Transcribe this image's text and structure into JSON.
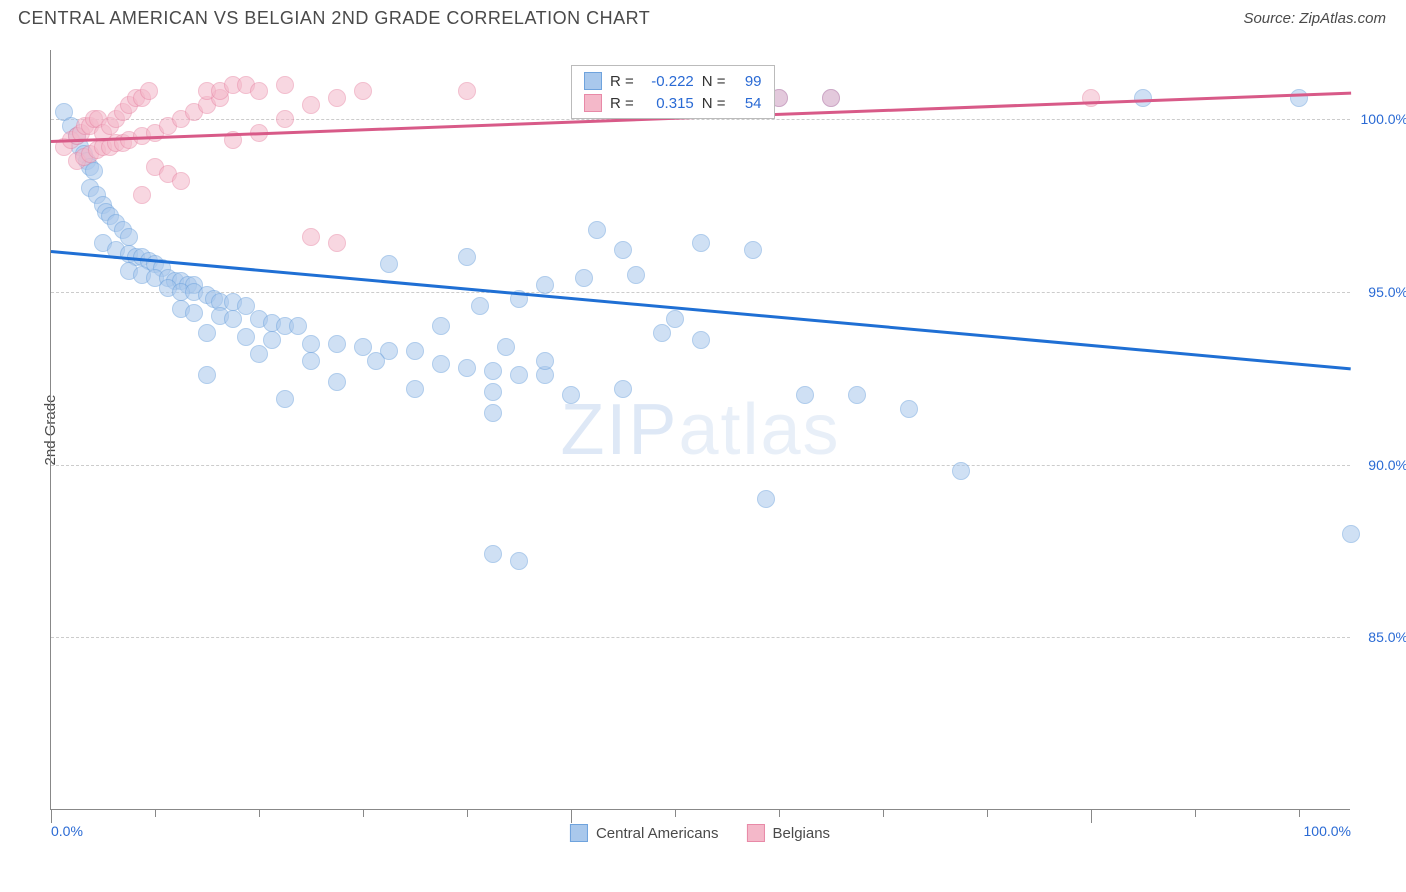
{
  "header": {
    "title": "CENTRAL AMERICAN VS BELGIAN 2ND GRADE CORRELATION CHART",
    "source": "Source: ZipAtlas.com"
  },
  "chart": {
    "type": "scatter",
    "ylabel": "2nd Grade",
    "watermark_a": "ZIP",
    "watermark_b": "atlas",
    "xlim": [
      0,
      100
    ],
    "ylim": [
      80,
      102
    ],
    "yticks": [
      {
        "v": 85,
        "label": "85.0%"
      },
      {
        "v": 90,
        "label": "90.0%"
      },
      {
        "v": 95,
        "label": "95.0%"
      },
      {
        "v": 100,
        "label": "100.0%"
      }
    ],
    "xticks_major": [
      0,
      40,
      80
    ],
    "xtick_labels": [
      {
        "v": 0,
        "label": "0.0%"
      },
      {
        "v": 100,
        "label": "100.0%"
      }
    ],
    "xticks_minor": [
      8,
      16,
      24,
      32,
      48,
      56,
      64,
      72,
      88,
      96
    ],
    "grid_color": "#cccccc",
    "background_color": "#ffffff",
    "marker_radius": 9,
    "marker_opacity": 0.55,
    "series": [
      {
        "name": "Central Americans",
        "color_fill": "#a9c8ec",
        "color_stroke": "#6fa3dd",
        "r": "-0.222",
        "n": "99",
        "trend": {
          "x1": 0,
          "y1": 96.2,
          "x2": 100,
          "y2": 92.8,
          "color": "#1f6fd4",
          "width": 2.5
        },
        "points": [
          [
            1,
            100.2
          ],
          [
            1.5,
            99.8
          ],
          [
            2,
            99.5
          ],
          [
            2.2,
            99.2
          ],
          [
            2.5,
            99.0
          ],
          [
            2.8,
            98.8
          ],
          [
            3,
            98.6
          ],
          [
            3.3,
            98.5
          ],
          [
            3,
            98.0
          ],
          [
            3.5,
            97.8
          ],
          [
            4,
            97.5
          ],
          [
            4.2,
            97.3
          ],
          [
            4.5,
            97.2
          ],
          [
            5,
            97.0
          ],
          [
            5.5,
            96.8
          ],
          [
            6,
            96.6
          ],
          [
            4,
            96.4
          ],
          [
            5,
            96.2
          ],
          [
            6,
            96.1
          ],
          [
            6.5,
            96.0
          ],
          [
            7,
            96.0
          ],
          [
            7.5,
            95.9
          ],
          [
            8,
            95.8
          ],
          [
            8.5,
            95.7
          ],
          [
            6,
            95.6
          ],
          [
            7,
            95.5
          ],
          [
            8,
            95.4
          ],
          [
            9,
            95.4
          ],
          [
            9.5,
            95.3
          ],
          [
            10,
            95.3
          ],
          [
            10.5,
            95.2
          ],
          [
            11,
            95.2
          ],
          [
            9,
            95.1
          ],
          [
            10,
            95.0
          ],
          [
            11,
            95.0
          ],
          [
            12,
            94.9
          ],
          [
            12.5,
            94.8
          ],
          [
            13,
            94.7
          ],
          [
            14,
            94.7
          ],
          [
            15,
            94.6
          ],
          [
            10,
            94.5
          ],
          [
            11,
            94.4
          ],
          [
            13,
            94.3
          ],
          [
            14,
            94.2
          ],
          [
            16,
            94.2
          ],
          [
            17,
            94.1
          ],
          [
            18,
            94.0
          ],
          [
            19,
            94.0
          ],
          [
            12,
            93.8
          ],
          [
            15,
            93.7
          ],
          [
            17,
            93.6
          ],
          [
            20,
            93.5
          ],
          [
            22,
            93.5
          ],
          [
            24,
            93.4
          ],
          [
            26,
            93.3
          ],
          [
            28,
            93.3
          ],
          [
            16,
            93.2
          ],
          [
            20,
            93.0
          ],
          [
            25,
            93.0
          ],
          [
            30,
            92.9
          ],
          [
            32,
            92.8
          ],
          [
            34,
            92.7
          ],
          [
            36,
            92.6
          ],
          [
            38,
            92.6
          ],
          [
            22,
            92.4
          ],
          [
            28,
            92.2
          ],
          [
            34,
            92.1
          ],
          [
            40,
            92.0
          ],
          [
            42,
            96.8
          ],
          [
            45,
            95.5
          ],
          [
            48,
            94.2
          ],
          [
            35,
            93.4
          ],
          [
            30,
            94.0
          ],
          [
            33,
            94.6
          ],
          [
            36,
            94.8
          ],
          [
            38,
            95.2
          ],
          [
            41,
            95.4
          ],
          [
            44,
            96.2
          ],
          [
            47,
            93.8
          ],
          [
            50,
            93.6
          ],
          [
            12,
            92.6
          ],
          [
            18,
            91.9
          ],
          [
            26,
            95.8
          ],
          [
            32,
            96.0
          ],
          [
            38,
            93.0
          ],
          [
            44,
            92.2
          ],
          [
            50,
            96.4
          ],
          [
            54,
            96.2
          ],
          [
            56,
            100.6
          ],
          [
            60,
            100.6
          ],
          [
            58,
            92.0
          ],
          [
            62,
            92.0
          ],
          [
            66,
            91.6
          ],
          [
            55,
            89.0
          ],
          [
            70,
            89.8
          ],
          [
            34,
            87.4
          ],
          [
            36,
            87.2
          ],
          [
            34,
            91.5
          ],
          [
            84,
            100.6
          ],
          [
            96,
            100.6
          ],
          [
            100,
            88.0
          ]
        ]
      },
      {
        "name": "Belgians",
        "color_fill": "#f4b8c9",
        "color_stroke": "#e889a7",
        "r": "0.315",
        "n": "54",
        "trend": {
          "x1": 0,
          "y1": 99.4,
          "x2": 100,
          "y2": 100.8,
          "color": "#d85a88",
          "width": 2.5
        },
        "points": [
          [
            1,
            99.2
          ],
          [
            1.5,
            99.4
          ],
          [
            2,
            99.5
          ],
          [
            2.3,
            99.6
          ],
          [
            2.6,
            99.8
          ],
          [
            3,
            99.8
          ],
          [
            3.3,
            100.0
          ],
          [
            3.6,
            100.0
          ],
          [
            2,
            98.8
          ],
          [
            2.5,
            98.9
          ],
          [
            3,
            99.0
          ],
          [
            3.5,
            99.1
          ],
          [
            4,
            99.2
          ],
          [
            4.5,
            99.2
          ],
          [
            5,
            99.3
          ],
          [
            5.5,
            99.3
          ],
          [
            4,
            99.6
          ],
          [
            4.5,
            99.8
          ],
          [
            5,
            100.0
          ],
          [
            5.5,
            100.2
          ],
          [
            6,
            100.4
          ],
          [
            6.5,
            100.6
          ],
          [
            7,
            100.6
          ],
          [
            7.5,
            100.8
          ],
          [
            6,
            99.4
          ],
          [
            7,
            99.5
          ],
          [
            8,
            99.6
          ],
          [
            9,
            99.8
          ],
          [
            10,
            100.0
          ],
          [
            11,
            100.2
          ],
          [
            12,
            100.4
          ],
          [
            13,
            100.6
          ],
          [
            8,
            98.6
          ],
          [
            9,
            98.4
          ],
          [
            10,
            98.2
          ],
          [
            7,
            97.8
          ],
          [
            12,
            100.8
          ],
          [
            13,
            100.8
          ],
          [
            14,
            101.0
          ],
          [
            15,
            101.0
          ],
          [
            14,
            99.4
          ],
          [
            16,
            99.6
          ],
          [
            18,
            100.0
          ],
          [
            20,
            100.4
          ],
          [
            16,
            100.8
          ],
          [
            18,
            101.0
          ],
          [
            22,
            100.6
          ],
          [
            24,
            100.8
          ],
          [
            20,
            96.6
          ],
          [
            22,
            96.4
          ],
          [
            32,
            100.8
          ],
          [
            56,
            100.6
          ],
          [
            60,
            100.6
          ],
          [
            80,
            100.6
          ]
        ]
      }
    ],
    "stats_legend": {
      "left_pct": 40,
      "top_pct_from_top": 2
    },
    "bottom_legend": {
      "items": [
        "Central Americans",
        "Belgians"
      ]
    }
  }
}
